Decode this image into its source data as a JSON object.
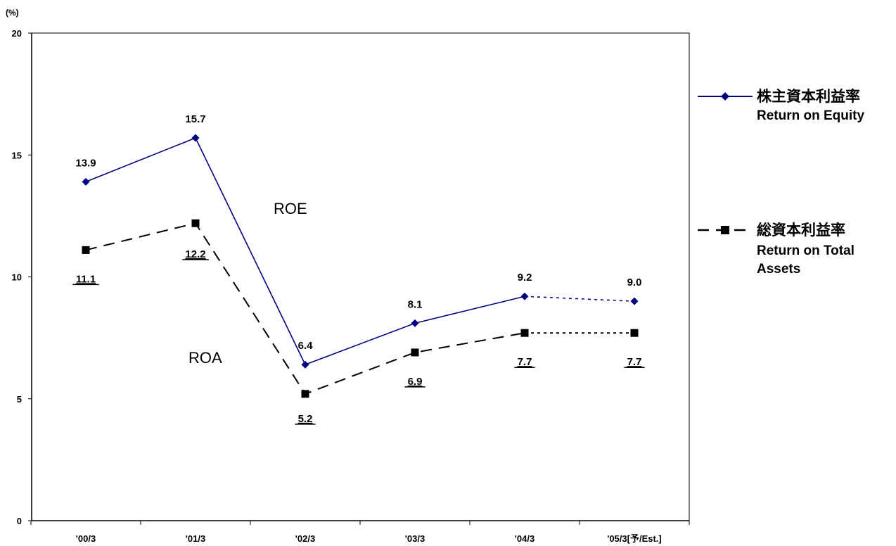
{
  "chart_data": {
    "type": "line",
    "y_unit": "(%)",
    "ylim": [
      0,
      20
    ],
    "yticks": [
      0,
      5,
      10,
      15,
      20
    ],
    "categories": [
      "'00/3",
      "'01/3",
      "'02/3",
      "'03/3",
      "'04/3",
      "'05/3[予/Est.]"
    ],
    "series": [
      {
        "name": "株主資本利益率",
        "name_en": "Return on Equity",
        "color": "#000080",
        "marker": "diamond",
        "line": "solid",
        "forecast_last": true,
        "values": [
          13.9,
          15.7,
          6.4,
          8.1,
          9.2,
          9.0
        ],
        "labels": [
          "13.9",
          "15.7",
          "6.4",
          "8.1",
          "9.2",
          "9.0"
        ]
      },
      {
        "name": "総資本利益率",
        "name_en_lines": [
          "Return on Total",
          "Assets"
        ],
        "color": "#000000",
        "marker": "square",
        "line": "dashed",
        "forecast_last": true,
        "values": [
          11.1,
          12.2,
          5.2,
          6.9,
          7.7,
          7.7
        ],
        "labels": [
          "11.1",
          "12.2",
          "5.2",
          "6.9",
          "7.7",
          "7.7"
        ]
      }
    ],
    "annotations": [
      "ROE",
      "ROA"
    ],
    "grid": false,
    "legend_position": "right"
  }
}
